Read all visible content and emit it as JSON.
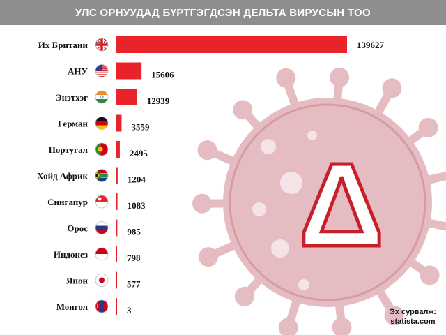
{
  "title": "УЛС ОРНУУДАД БҮРТГЭГДСЭН ДЕЛЬТА ВИРУСЫН ТОО",
  "source_label": "Эх сурвалж:",
  "source_name": "statista.com",
  "colors": {
    "bar": "#e8232a",
    "title_bg": "#8e8e8e",
    "virus": "#e6bcc3",
    "virus_ring": "#d89aa5",
    "delta": "#c8202a"
  },
  "virus_symbol": "Δ",
  "chart_data": {
    "type": "bar",
    "orientation": "horizontal",
    "title": "УЛС ОРНУУДАД БҮРТГЭГДСЭН ДЕЛЬТА ВИРУСЫН ТОО",
    "categories": [
      "Их Британи",
      "АНУ",
      "Энэтхэг",
      "Герман",
      "Португал",
      "Хойд Африк",
      "Сингапур",
      "Орос",
      "Индонез",
      "Япон",
      "Монгол"
    ],
    "values": [
      139627,
      15606,
      12939,
      3559,
      2495,
      1204,
      1083,
      985,
      798,
      577,
      3
    ],
    "flags": [
      "uk",
      "usa",
      "india",
      "germany",
      "portugal",
      "south-africa",
      "singapore",
      "russia",
      "indonesia",
      "japan",
      "mongolia"
    ],
    "xlim": [
      0,
      139627
    ],
    "grid": false,
    "legend": "none"
  }
}
